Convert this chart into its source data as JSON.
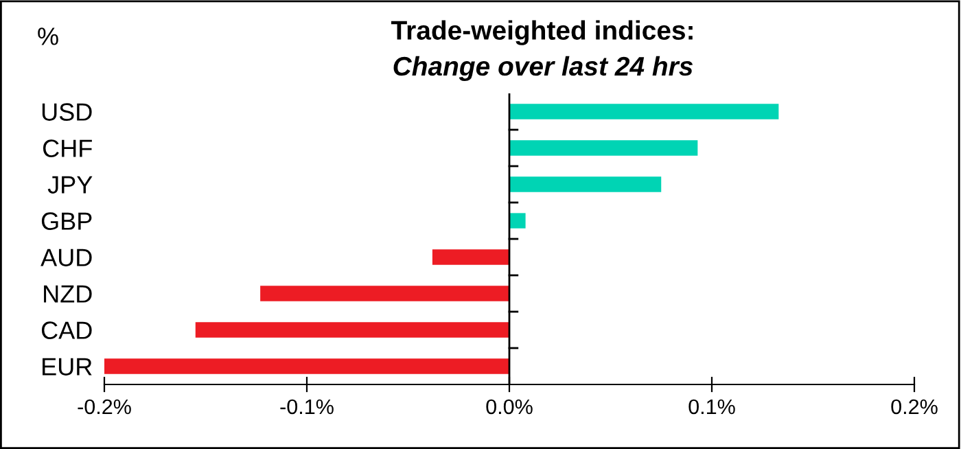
{
  "chart_data": {
    "type": "bar",
    "orientation": "horizontal",
    "title": "Trade-weighted indices:",
    "subtitle": "Change over last 24 hrs",
    "ylabel": "%",
    "categories": [
      "USD",
      "CHF",
      "JPY",
      "GBP",
      "AUD",
      "NZD",
      "CAD",
      "EUR"
    ],
    "values": [
      0.133,
      0.093,
      0.075,
      0.008,
      -0.038,
      -0.123,
      -0.155,
      -0.2
    ],
    "colors": [
      "#00d4b4",
      "#00d4b4",
      "#00d4b4",
      "#00d4b4",
      "#ed1c24",
      "#ed1c24",
      "#ed1c24",
      "#ed1c24"
    ],
    "xlim": [
      -0.2,
      0.2
    ],
    "xticks": [
      {
        "value": -0.2,
        "label": "-0.2%"
      },
      {
        "value": -0.1,
        "label": "-0.1%"
      },
      {
        "value": 0,
        "label": "0.0%"
      },
      {
        "value": 0.1,
        "label": "0.1%"
      },
      {
        "value": 0.2,
        "label": "0.2%"
      }
    ],
    "legend": false
  }
}
